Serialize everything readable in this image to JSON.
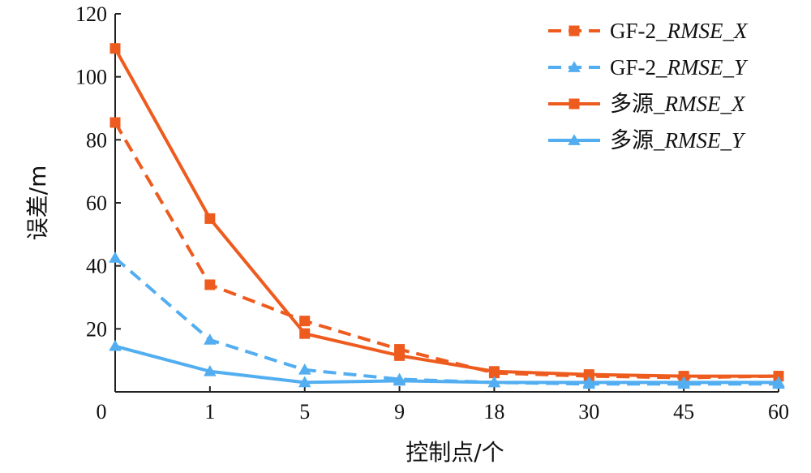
{
  "chart_data": {
    "type": "line",
    "xlabel": "控制点/个",
    "ylabel": "误差/m",
    "categories": [
      "0",
      "1",
      "5",
      "9",
      "18",
      "30",
      "45",
      "60"
    ],
    "ylim": [
      0,
      120
    ],
    "yticks": [
      0,
      20,
      40,
      60,
      80,
      100,
      120
    ],
    "grid": false,
    "legend_position": "top-right",
    "series": [
      {
        "name": "GF-2_RMSE_X",
        "label_parts": [
          "GF-2_",
          "RMSE",
          "_",
          "X"
        ],
        "values": [
          85.5,
          34,
          22.5,
          13.5,
          6,
          5,
          4.5,
          5
        ],
        "color": "#ee5b1e",
        "dash": true,
        "marker": "square"
      },
      {
        "name": "GF-2_RMSE_Y",
        "label_parts": [
          "GF-2_",
          "RMSE",
          "_",
          "Y"
        ],
        "values": [
          42.5,
          16.5,
          7,
          4,
          3,
          2.5,
          2.5,
          2.5
        ],
        "color": "#52aef0",
        "dash": true,
        "marker": "triangle"
      },
      {
        "name": "多源_RMSE_X",
        "label_parts": [
          "多源_",
          "RMSE",
          "_",
          "X"
        ],
        "values": [
          109,
          55,
          18.5,
          11.5,
          6.5,
          5.5,
          5,
          5
        ],
        "color": "#ee5b1e",
        "dash": false,
        "marker": "square"
      },
      {
        "name": "多源_RMSE_Y",
        "label_parts": [
          "多源_",
          "RMSE",
          "_",
          "Y"
        ],
        "values": [
          14.5,
          6.5,
          3,
          3.5,
          3,
          3,
          3,
          3
        ],
        "color": "#52aef0",
        "dash": false,
        "marker": "triangle"
      }
    ]
  }
}
